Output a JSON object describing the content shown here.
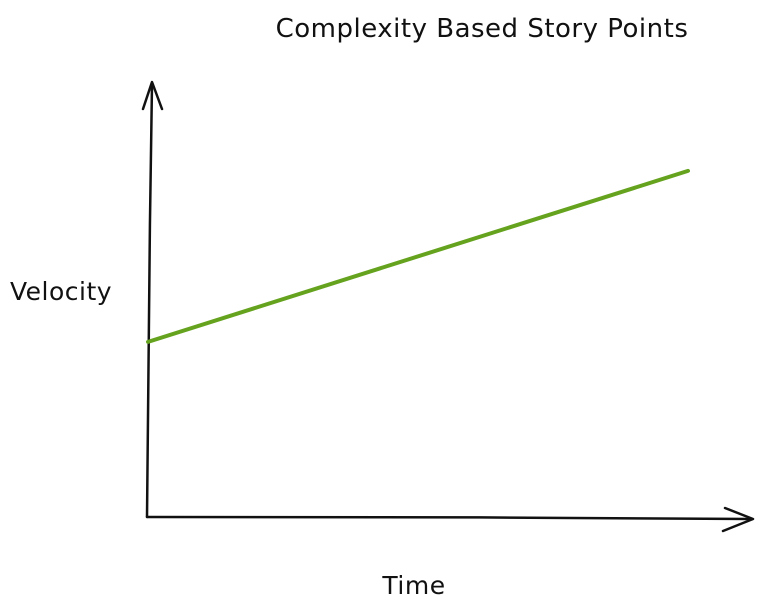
{
  "chart_data": {
    "type": "line",
    "title": "Complexity Based Story Points",
    "xlabel": "Time",
    "ylabel": "Velocity",
    "grid": false,
    "legend": "none",
    "xlim": [
      0,
      1
    ],
    "ylim": [
      0,
      1
    ],
    "series": [
      {
        "x": [
          0,
          0.9
        ],
        "values": [
          0.42,
          0.83
        ],
        "color": "#65a31f"
      }
    ]
  }
}
